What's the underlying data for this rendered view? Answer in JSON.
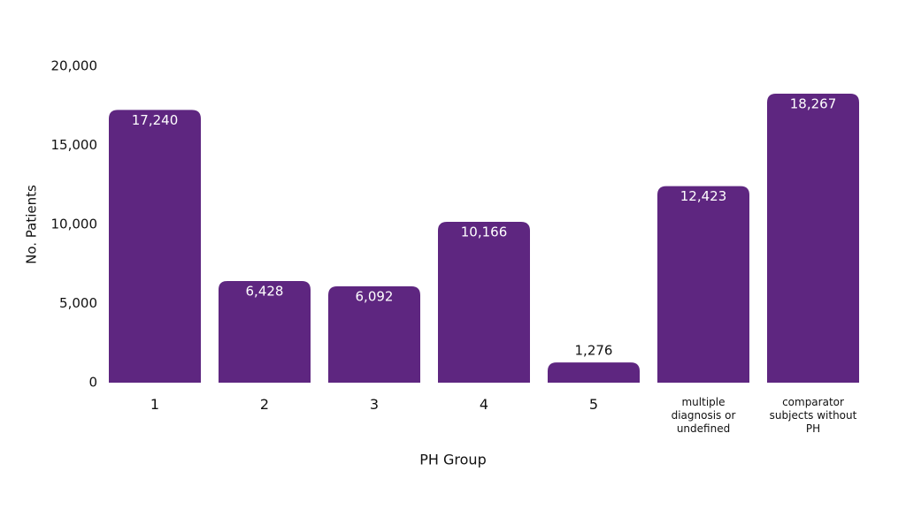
{
  "chart_data": {
    "type": "bar",
    "x_label": "PH Group",
    "y_label": "No. Patients",
    "categories": [
      "1",
      "2",
      "3",
      "4",
      "5",
      "multiple diagnosis or undefined",
      "comparator subjects without PH"
    ],
    "values": [
      17240,
      6428,
      6092,
      10166,
      1276,
      12423,
      18267
    ],
    "value_labels": [
      "17,240",
      "6,428",
      "6,092",
      "10,166",
      "1,276",
      "12,423",
      "18,267"
    ],
    "color": "#5e2680",
    "ylim": [
      0,
      20000
    ],
    "yticks": [
      0,
      {
        "value": 5000,
        "label": "5,000"
      },
      {
        "value": 10000,
        "label": "10,000"
      },
      {
        "value": 15000,
        "label": "15,000"
      },
      {
        "value": 20000,
        "label": "20,000"
      }
    ],
    "grid": false
  }
}
